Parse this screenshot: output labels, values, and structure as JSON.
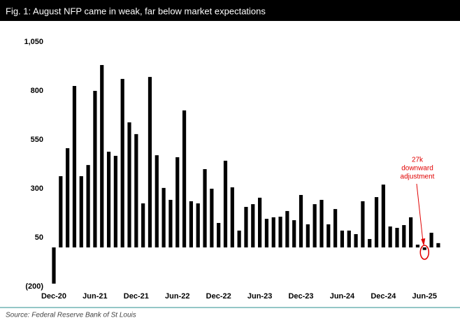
{
  "chart_data": {
    "type": "bar",
    "title": "Fig. 1: August NFP came in weak, far below market expectations",
    "source": "Source: Federal Reserve Bank of St Louis",
    "annotation": [
      "27k",
      "downward",
      "adjustment"
    ],
    "categories": [
      "Dec-20",
      null,
      null,
      null,
      null,
      null,
      "Jun-21",
      null,
      null,
      null,
      null,
      null,
      "Dec-21",
      null,
      null,
      null,
      null,
      null,
      "Jun-22",
      null,
      null,
      null,
      null,
      null,
      "Dec-22",
      null,
      null,
      null,
      null,
      null,
      "Jun-23",
      null,
      null,
      null,
      null,
      null,
      "Dec-23",
      null,
      null,
      null,
      null,
      null,
      "Jun-24",
      null,
      null,
      null,
      null,
      null,
      "Dec-24",
      null,
      null,
      null,
      null,
      null,
      "Jun-25",
      null,
      null
    ],
    "values": [
      -185,
      364,
      507,
      825,
      364,
      421,
      800,
      932,
      489,
      468,
      861,
      639,
      579,
      225,
      871,
      471,
      304,
      243,
      461,
      700,
      236,
      225,
      400,
      300,
      125,
      443,
      307,
      86,
      207,
      221,
      254,
      146,
      154,
      157,
      186,
      139,
      268,
      118,
      221,
      243,
      118,
      196,
      86,
      86,
      68,
      236,
      43,
      257,
      321,
      107,
      100,
      114,
      154,
      14,
      -13,
      75,
      22
    ],
    "color": "#000000",
    "annotation_color": "#e00000",
    "ylim": [
      -200,
      1050
    ],
    "yticks": [
      {
        "value": -200,
        "label": "(200)"
      },
      50,
      300,
      550,
      800,
      {
        "value": 1050,
        "label": "1,050"
      }
    ],
    "grid": false
  }
}
